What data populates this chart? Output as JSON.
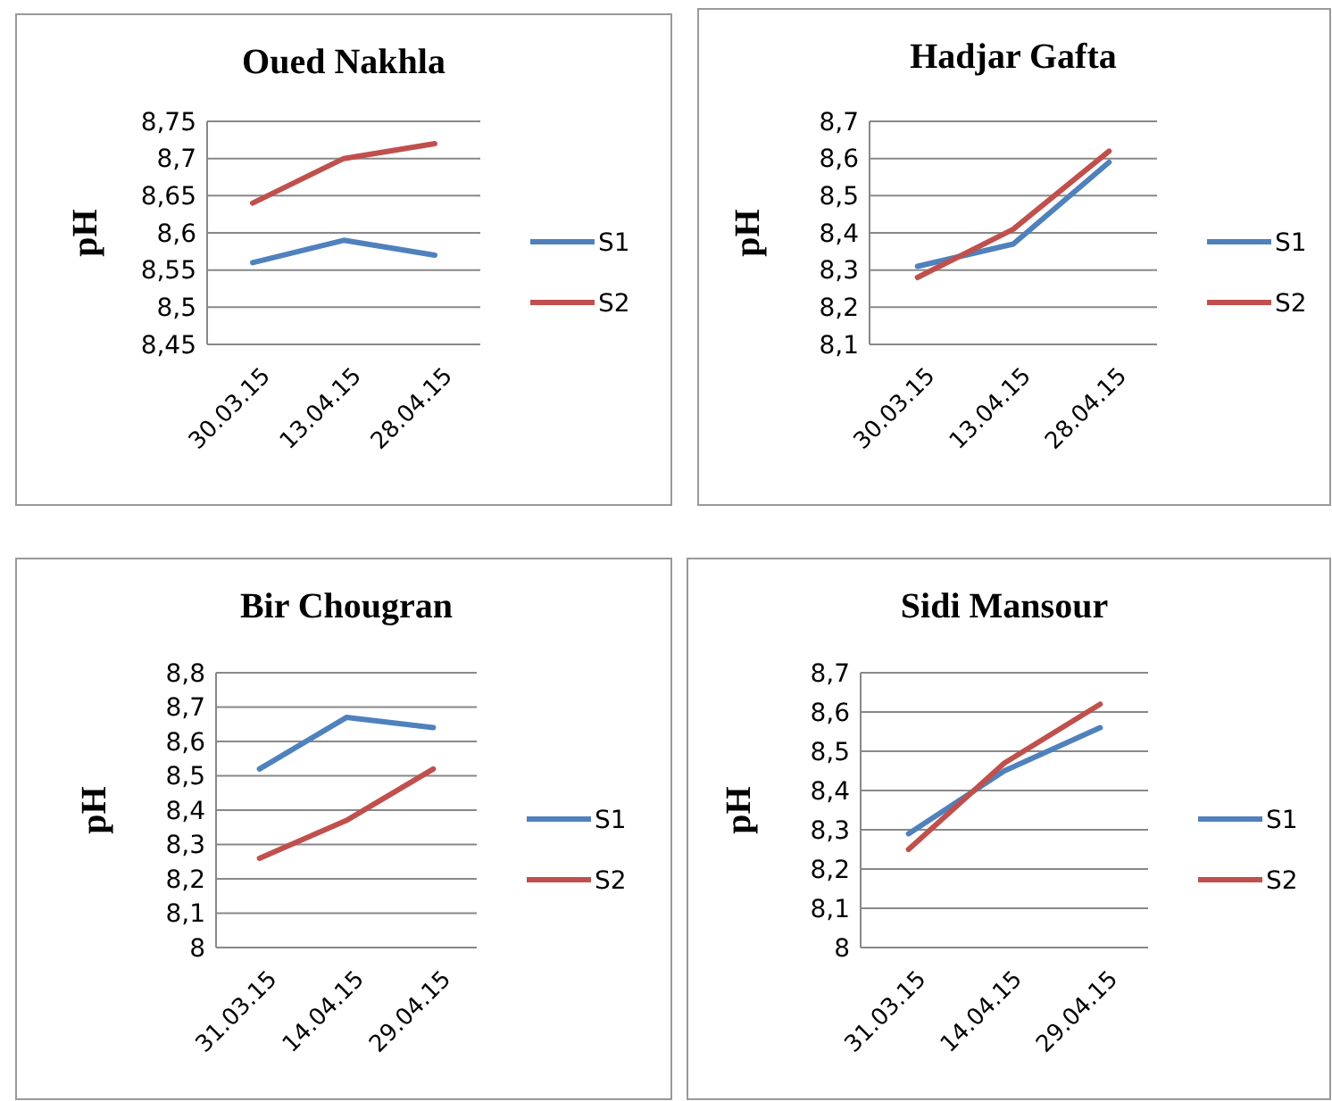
{
  "chart_data": [
    {
      "type": "line",
      "title": "Oued Nakhla",
      "ylabel": "pH",
      "categories": [
        "30.03.15",
        "13.04.15",
        "28.04.15"
      ],
      "ylim": [
        8.45,
        8.75
      ],
      "yticks": [
        {
          "value": 8.45,
          "label": "8,45"
        },
        {
          "value": 8.5,
          "label": "8,5"
        },
        {
          "value": 8.55,
          "label": "8,55"
        },
        {
          "value": 8.6,
          "label": "8,6"
        },
        {
          "value": 8.65,
          "label": "8,65"
        },
        {
          "value": 8.7,
          "label": "8,7"
        },
        {
          "value": 8.75,
          "label": "8,75"
        }
      ],
      "grid": "y",
      "legend": "right",
      "marker": "none",
      "series": [
        {
          "name": "S1",
          "color": "#4f81bd",
          "values": [
            8.56,
            8.59,
            8.57
          ]
        },
        {
          "name": "S2",
          "color": "#c0504d",
          "values": [
            8.64,
            8.7,
            8.72
          ]
        }
      ]
    },
    {
      "type": "line",
      "title": "Hadjar Gafta",
      "ylabel": "pH",
      "categories": [
        "30.03.15",
        "13.04.15",
        "28.04.15"
      ],
      "ylim": [
        8.1,
        8.7
      ],
      "yticks": [
        {
          "value": 8.1,
          "label": "8,1"
        },
        {
          "value": 8.2,
          "label": "8,2"
        },
        {
          "value": 8.3,
          "label": "8,3"
        },
        {
          "value": 8.4,
          "label": "8,4"
        },
        {
          "value": 8.5,
          "label": "8,5"
        },
        {
          "value": 8.6,
          "label": "8,6"
        },
        {
          "value": 8.7,
          "label": "8,7"
        }
      ],
      "grid": "y",
      "legend": "right",
      "marker": "none",
      "series": [
        {
          "name": "S1",
          "color": "#4f81bd",
          "values": [
            8.31,
            8.37,
            8.59
          ]
        },
        {
          "name": "S2",
          "color": "#c0504d",
          "values": [
            8.28,
            8.41,
            8.62
          ]
        }
      ]
    },
    {
      "type": "line",
      "title": "Bir Chougran",
      "ylabel": "pH",
      "categories": [
        "31.03.15",
        "14.04.15",
        "29.04.15"
      ],
      "ylim": [
        8,
        8.8
      ],
      "yticks": [
        8,
        {
          "value": 8.1,
          "label": "8,1"
        },
        {
          "value": 8.2,
          "label": "8,2"
        },
        {
          "value": 8.3,
          "label": "8,3"
        },
        {
          "value": 8.4,
          "label": "8,4"
        },
        {
          "value": 8.5,
          "label": "8,5"
        },
        {
          "value": 8.6,
          "label": "8,6"
        },
        {
          "value": 8.7,
          "label": "8,7"
        },
        {
          "value": 8.8,
          "label": "8,8"
        }
      ],
      "grid": "y",
      "legend": "right",
      "marker": "none",
      "series": [
        {
          "name": "S1",
          "color": "#4f81bd",
          "values": [
            8.52,
            8.67,
            8.64
          ]
        },
        {
          "name": "S2",
          "color": "#c0504d",
          "values": [
            8.26,
            8.37,
            8.52
          ]
        }
      ]
    },
    {
      "type": "line",
      "title": "Sidi Mansour",
      "ylabel": "pH",
      "categories": [
        "31.03.15",
        "14.04.15",
        "29.04.15"
      ],
      "ylim": [
        8,
        8.7
      ],
      "yticks": [
        8,
        {
          "value": 8.1,
          "label": "8,1"
        },
        {
          "value": 8.2,
          "label": "8,2"
        },
        {
          "value": 8.3,
          "label": "8,3"
        },
        {
          "value": 8.4,
          "label": "8,4"
        },
        {
          "value": 8.5,
          "label": "8,5"
        },
        {
          "value": 8.6,
          "label": "8,6"
        },
        {
          "value": 8.7,
          "label": "8,7"
        }
      ],
      "grid": "y",
      "legend": "right",
      "marker": "none",
      "series": [
        {
          "name": "S1",
          "color": "#4f81bd",
          "values": [
            8.29,
            8.45,
            8.56
          ]
        },
        {
          "name": "S2",
          "color": "#c0504d",
          "values": [
            8.25,
            8.47,
            8.62
          ]
        }
      ]
    }
  ]
}
